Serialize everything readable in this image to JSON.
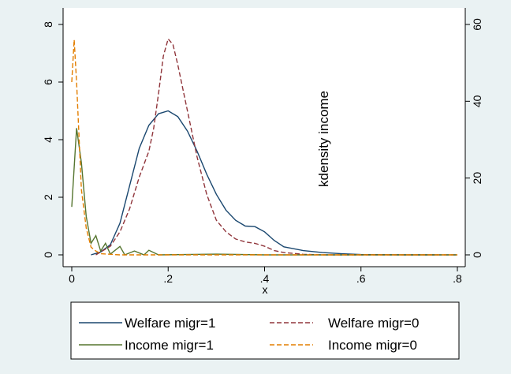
{
  "chart_data": {
    "type": "line",
    "xlabel": "x",
    "y2label": "kdensity income",
    "xlim": [
      0,
      0.8
    ],
    "xticks": [
      0,
      {
        "value": 0.2,
        "label": ".2"
      },
      {
        "value": 0.4,
        "label": ".4"
      },
      {
        "value": 0.6,
        "label": ".6"
      },
      {
        "value": 0.8,
        "label": ".8"
      }
    ],
    "ylim": [
      0,
      8
    ],
    "yticks": [
      0,
      2,
      4,
      6,
      8
    ],
    "y2lim": [
      0,
      60
    ],
    "y2ticks": [
      0,
      20,
      40,
      60
    ],
    "series": [
      {
        "name": "Welfare migr=1",
        "color": "#1a476f",
        "dashed": false,
        "axis": "y",
        "x": [
          0.04,
          0.06,
          0.08,
          0.1,
          0.12,
          0.14,
          0.16,
          0.18,
          0.2,
          0.22,
          0.24,
          0.26,
          0.28,
          0.3,
          0.32,
          0.34,
          0.36,
          0.38,
          0.4,
          0.42,
          0.44,
          0.48,
          0.52,
          0.56,
          0.6,
          0.7,
          0.76
        ],
        "values": [
          0,
          0.1,
          0.35,
          1.1,
          2.4,
          3.7,
          4.5,
          4.9,
          5.0,
          4.8,
          4.3,
          3.6,
          2.8,
          2.1,
          1.55,
          1.2,
          1.0,
          0.98,
          0.8,
          0.5,
          0.28,
          0.15,
          0.08,
          0.04,
          0.01,
          0,
          0
        ]
      },
      {
        "name": "Welfare migr=0",
        "color": "#90353b",
        "dashed": true,
        "axis": "y",
        "x": [
          0.05,
          0.08,
          0.1,
          0.12,
          0.14,
          0.16,
          0.17,
          0.18,
          0.19,
          0.2,
          0.21,
          0.22,
          0.24,
          0.26,
          0.28,
          0.3,
          0.32,
          0.34,
          0.36,
          0.38,
          0.4,
          0.42,
          0.44,
          0.48,
          0.52,
          0.6,
          0.8
        ],
        "values": [
          0,
          0.3,
          0.8,
          1.6,
          2.7,
          3.6,
          4.4,
          5.6,
          6.9,
          7.5,
          7.3,
          6.6,
          5.0,
          3.4,
          2.1,
          1.2,
          0.8,
          0.55,
          0.45,
          0.4,
          0.3,
          0.15,
          0.08,
          0.02,
          0,
          0,
          0
        ]
      },
      {
        "name": "Income migr=1",
        "color": "#55752f",
        "dashed": false,
        "axis": "y2",
        "x": [
          0,
          0.01,
          0.02,
          0.03,
          0.04,
          0.05,
          0.06,
          0.07,
          0.08,
          0.1,
          0.11,
          0.13,
          0.15,
          0.16,
          0.18,
          0.3,
          0.4,
          0.6,
          0.8
        ],
        "values": [
          12.5,
          33,
          24,
          10,
          3,
          5,
          1,
          3,
          0.2,
          2.2,
          0,
          1,
          0,
          1.2,
          0,
          0.2,
          0,
          0,
          0
        ]
      },
      {
        "name": "Income migr=0",
        "color": "#e37e00",
        "dashed": true,
        "axis": "y2",
        "x": [
          0,
          0.005,
          0.01,
          0.02,
          0.03,
          0.04,
          0.05,
          0.06,
          0.1,
          0.8
        ],
        "values": [
          45,
          56,
          45,
          17,
          7,
          2,
          1,
          0.3,
          0,
          0
        ]
      }
    ]
  }
}
